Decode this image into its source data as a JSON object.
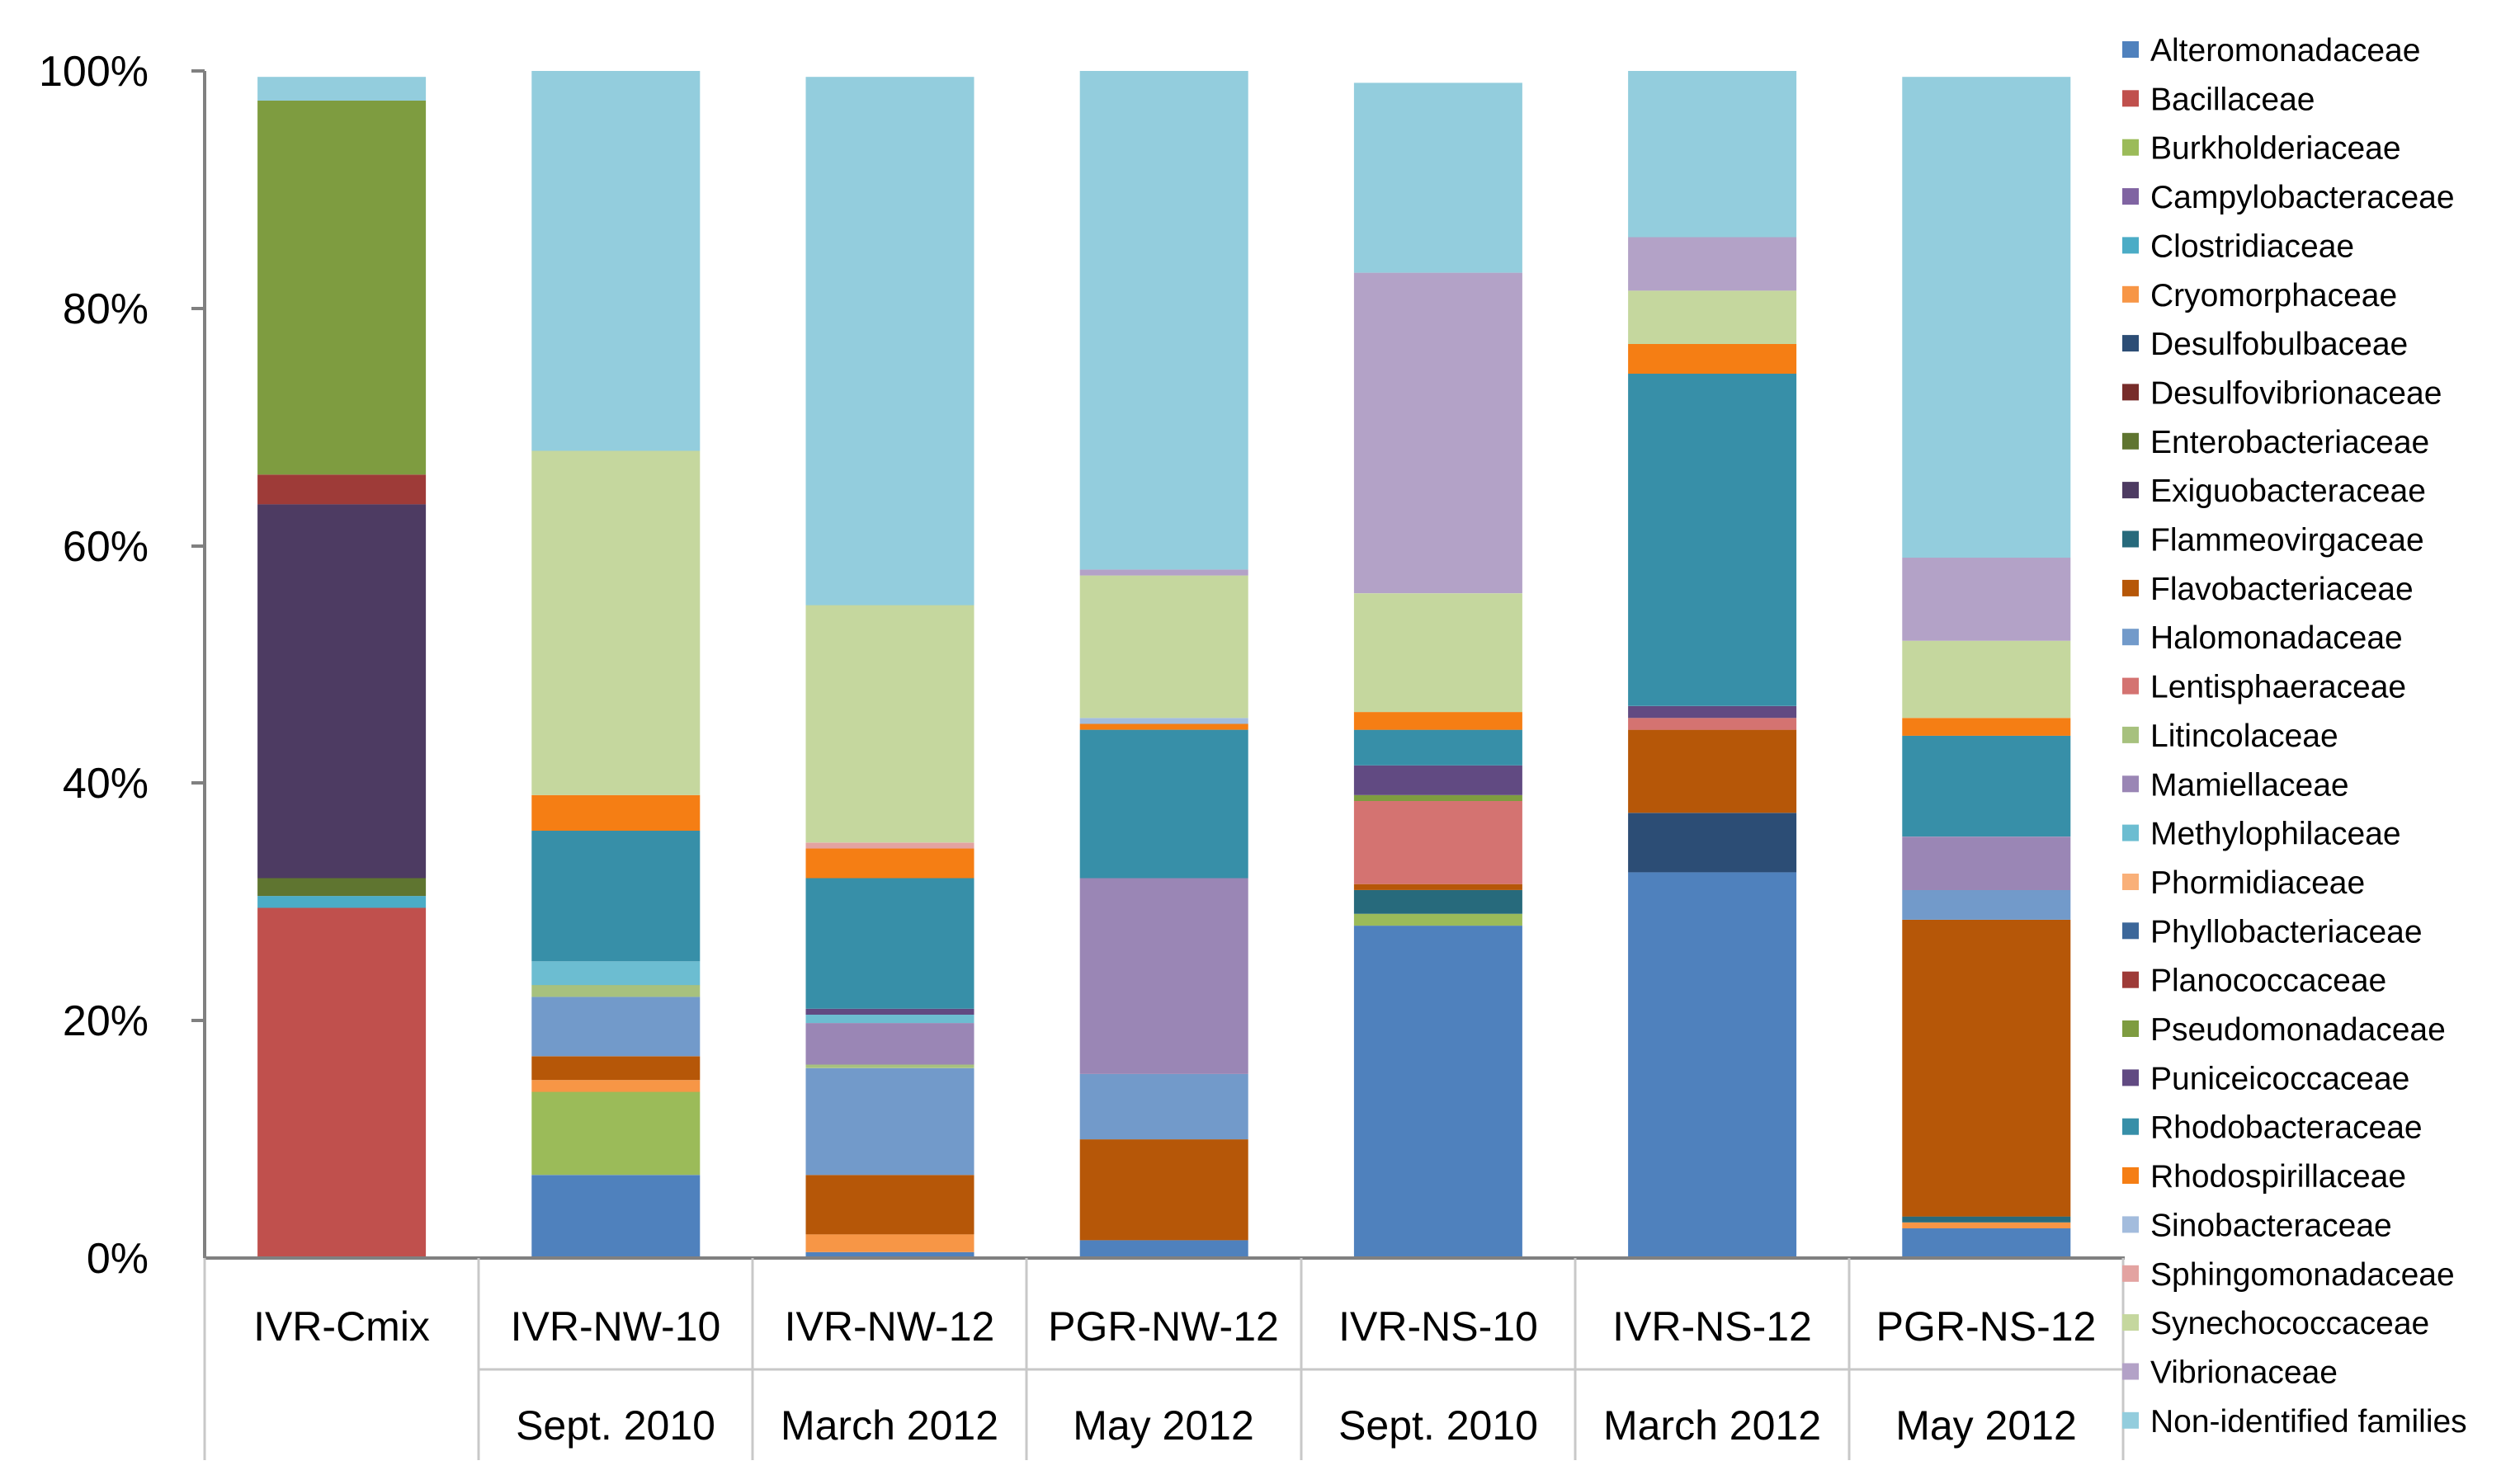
{
  "chart_data": {
    "type": "bar",
    "stacked": true,
    "normalized": true,
    "title": "",
    "xlabel": "",
    "ylabel": "",
    "ylim": [
      0,
      100
    ],
    "y_ticks": [
      "0%",
      "20%",
      "40%",
      "60%",
      "80%",
      "100%"
    ],
    "y_tick_values": [
      0,
      20,
      40,
      60,
      80,
      100
    ],
    "legend_position": "right",
    "categories": [
      {
        "name": "IVR-Cmix",
        "date": ""
      },
      {
        "name": "IVR-NW-10",
        "date": "Sept. 2010"
      },
      {
        "name": "IVR-NW-12",
        "date": "March 2012"
      },
      {
        "name": "PGR-NW-12",
        "date": "May 2012"
      },
      {
        "name": "IVR-NS-10",
        "date": "Sept. 2010"
      },
      {
        "name": "IVR-NS-12",
        "date": "March 2012"
      },
      {
        "name": "PGR-NS-12",
        "date": "May 2012"
      }
    ],
    "series": [
      {
        "name": "Alteromonadaceae",
        "color": "#4F81BD",
        "values": [
          0,
          7,
          0.5,
          1.5,
          28,
          32.5,
          2.5
        ]
      },
      {
        "name": "Bacillaceae",
        "color": "#C0504D",
        "values": [
          29.5,
          0,
          0,
          0,
          0,
          0,
          0
        ]
      },
      {
        "name": "Burkholderiaceae",
        "color": "#9BBB59",
        "values": [
          0,
          7,
          0,
          0,
          1,
          0,
          0
        ]
      },
      {
        "name": "Campylobacteraceae",
        "color": "#8064A2",
        "values": [
          0,
          0,
          0,
          0,
          0,
          0,
          0
        ]
      },
      {
        "name": "Clostridiaceae",
        "color": "#4BACC6",
        "values": [
          1,
          0,
          0,
          0,
          0,
          0,
          0
        ]
      },
      {
        "name": "Cryomorphaceae",
        "color": "#F79646",
        "values": [
          0,
          1,
          1.5,
          0,
          0,
          0,
          0.5
        ]
      },
      {
        "name": "Desulfobulbaceae",
        "color": "#2C4D75",
        "values": [
          0,
          0,
          0,
          0,
          0,
          5,
          0
        ]
      },
      {
        "name": "Desulfovibrionaceae",
        "color": "#772C2A",
        "values": [
          0,
          0,
          0,
          0,
          0,
          0,
          0
        ]
      },
      {
        "name": "Enterobacteriaceae",
        "color": "#5F7530",
        "values": [
          1.5,
          0,
          0,
          0,
          0,
          0,
          0
        ]
      },
      {
        "name": "Exiguobacteraceae",
        "color": "#4D3B62",
        "values": [
          31.5,
          0,
          0,
          0,
          0,
          0,
          0
        ]
      },
      {
        "name": "Flammeovirgaceae",
        "color": "#276A7C",
        "values": [
          0,
          0,
          0,
          0,
          2,
          0,
          0.5
        ]
      },
      {
        "name": "Flavobacteriaceae",
        "color": "#B65708",
        "values": [
          0,
          2,
          5,
          8.5,
          0.5,
          7,
          25
        ]
      },
      {
        "name": "Halomonadaceae",
        "color": "#729ACA",
        "values": [
          0,
          5,
          9,
          5.5,
          0,
          0,
          2.5
        ]
      },
      {
        "name": "Lentisphaeraceae",
        "color": "#D47371",
        "values": [
          0,
          0,
          0,
          0,
          7,
          1,
          0
        ]
      },
      {
        "name": "Litincolaceae",
        "color": "#A7C17E",
        "values": [
          0,
          1,
          0.3,
          0,
          0,
          0,
          0
        ]
      },
      {
        "name": "Mamiellaceae",
        "color": "#9A86B5",
        "values": [
          0,
          0,
          3.5,
          16.5,
          0,
          0,
          4.5
        ]
      },
      {
        "name": "Methylophilaceae",
        "color": "#6CBDD1",
        "values": [
          0,
          2,
          0.7,
          0,
          0,
          0,
          0
        ]
      },
      {
        "name": "Phormidiaceae",
        "color": "#F9B079",
        "values": [
          0,
          0,
          0,
          0,
          0,
          0,
          0
        ]
      },
      {
        "name": "Phyllobacteriaceae",
        "color": "#3C679A",
        "values": [
          0,
          0,
          0,
          0,
          0,
          0,
          0
        ]
      },
      {
        "name": "Planococcaceae",
        "color": "#9E3B38",
        "values": [
          2.5,
          0,
          0,
          0,
          0,
          0,
          0
        ]
      },
      {
        "name": "Pseudomonadaceae",
        "color": "#7E9C40",
        "values": [
          31.5,
          0,
          0,
          0,
          0.5,
          0,
          0
        ]
      },
      {
        "name": "Puniceicoccaceae",
        "color": "#614A82",
        "values": [
          0,
          0,
          0.5,
          0,
          2.5,
          1,
          0
        ]
      },
      {
        "name": "Rhodobacteraceae",
        "color": "#378FA8",
        "values": [
          0,
          11,
          11,
          12.5,
          3,
          28,
          8.5
        ]
      },
      {
        "name": "Rhodospirillaceae",
        "color": "#F57E14",
        "values": [
          0,
          3,
          2.5,
          0.5,
          1.5,
          2.5,
          1.5
        ]
      },
      {
        "name": "Sinobacteraceae",
        "color": "#A3BCDD",
        "values": [
          0,
          0,
          0,
          0.5,
          0,
          0,
          0
        ]
      },
      {
        "name": "Sphingomonadaceae",
        "color": "#E3A3A1",
        "values": [
          0,
          0,
          0.5,
          0,
          0,
          0,
          0
        ]
      },
      {
        "name": "Synechococcaceae",
        "color": "#C5D79E",
        "values": [
          0,
          29,
          20,
          12,
          10,
          4.5,
          6.5
        ]
      },
      {
        "name": "Vibrionaceae",
        "color": "#B3A2C7",
        "values": [
          0,
          0,
          0,
          0.5,
          27,
          4.5,
          7
        ]
      },
      {
        "name": "Non-identified families",
        "color": "#93CDDD",
        "values": [
          2,
          32,
          44.5,
          42,
          16,
          14,
          40.5
        ]
      }
    ]
  }
}
